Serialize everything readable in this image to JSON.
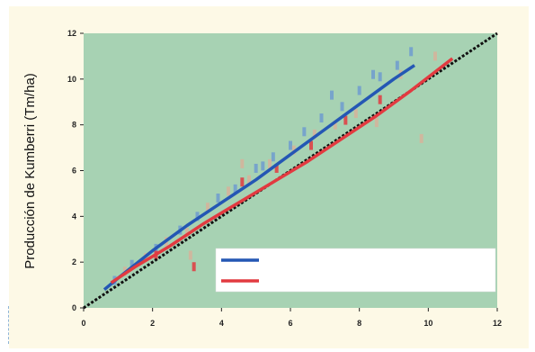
{
  "chart_data": {
    "type": "scatter",
    "title": "",
    "ylabel": "Producción de Kumberri (Tm/ha)",
    "xlabel": "",
    "xlim": [
      0,
      12
    ],
    "ylim": [
      0,
      12
    ],
    "x_ticks": [
      "0",
      "2",
      "4",
      "6",
      "8",
      "10",
      "12"
    ],
    "y_ticks": [
      "0",
      "2",
      "4",
      "6",
      "8",
      "10",
      "12"
    ],
    "grid": false,
    "legend_position": "bottom-right",
    "colors": {
      "background": "#a7d2b3",
      "blue": "#2457b4",
      "red": "#e23a40",
      "identity": "#111111",
      "points_blue": "#6f9ccf",
      "points_tan": "#d6b39a"
    },
    "series": [
      {
        "name": "",
        "type": "line",
        "color": "#2457b4",
        "x": [
          0.6,
          1,
          2,
          3,
          4,
          5,
          6,
          7,
          8,
          9,
          9.6
        ],
        "y": [
          0.8,
          1.3,
          2.5,
          3.6,
          4.6,
          5.6,
          6.7,
          7.8,
          8.9,
          10.0,
          10.6
        ]
      },
      {
        "name": "",
        "type": "line",
        "color": "#e23a40",
        "x": [
          0.8,
          1.5,
          2.5,
          3.5,
          4.5,
          5.5,
          6.5,
          7.5,
          8.5,
          9.5,
          10.7
        ],
        "y": [
          1.1,
          1.8,
          2.7,
          3.7,
          4.6,
          5.5,
          6.4,
          7.4,
          8.4,
          9.5,
          10.9
        ]
      },
      {
        "name": "",
        "type": "line",
        "color": "#111111",
        "x": [
          0,
          12
        ],
        "y": [
          0,
          12
        ]
      },
      {
        "name": "",
        "type": "scatter",
        "color": "#6f9ccf",
        "x": [
          0.9,
          1.4,
          2.1,
          2.8,
          3.3,
          3.9,
          4.4,
          5.0,
          5.5,
          6.0,
          6.4,
          6.9,
          7.5,
          8.0,
          8.6,
          9.1,
          9.5,
          5.2,
          7.2,
          8.4
        ],
        "y": [
          1.2,
          1.9,
          2.6,
          3.4,
          4.0,
          4.8,
          5.2,
          6.1,
          6.6,
          7.1,
          7.7,
          8.3,
          8.8,
          9.5,
          10.1,
          10.6,
          11.2,
          6.2,
          9.3,
          10.2
        ]
      },
      {
        "name": "",
        "type": "scatter",
        "color": "#d6b39a",
        "x": [
          1.2,
          1.8,
          2.4,
          3.0,
          3.6,
          4.2,
          4.8,
          5.4,
          6.1,
          6.7,
          7.3,
          7.9,
          8.5,
          9.2,
          10.2,
          3.1,
          4.6,
          9.8
        ],
        "y": [
          1.6,
          2.2,
          2.9,
          3.3,
          4.4,
          5.1,
          5.6,
          6.3,
          6.9,
          7.6,
          8.0,
          8.5,
          8.1,
          10.2,
          11.0,
          2.3,
          6.3,
          7.4
        ]
      },
      {
        "name": "",
        "type": "scatter",
        "color": "#e23a40",
        "x": [
          2.1,
          3.2,
          4.6,
          5.6,
          6.6,
          7.6,
          8.6
        ],
        "y": [
          2.3,
          1.8,
          5.5,
          6.1,
          7.1,
          8.2,
          9.1
        ]
      }
    ]
  }
}
